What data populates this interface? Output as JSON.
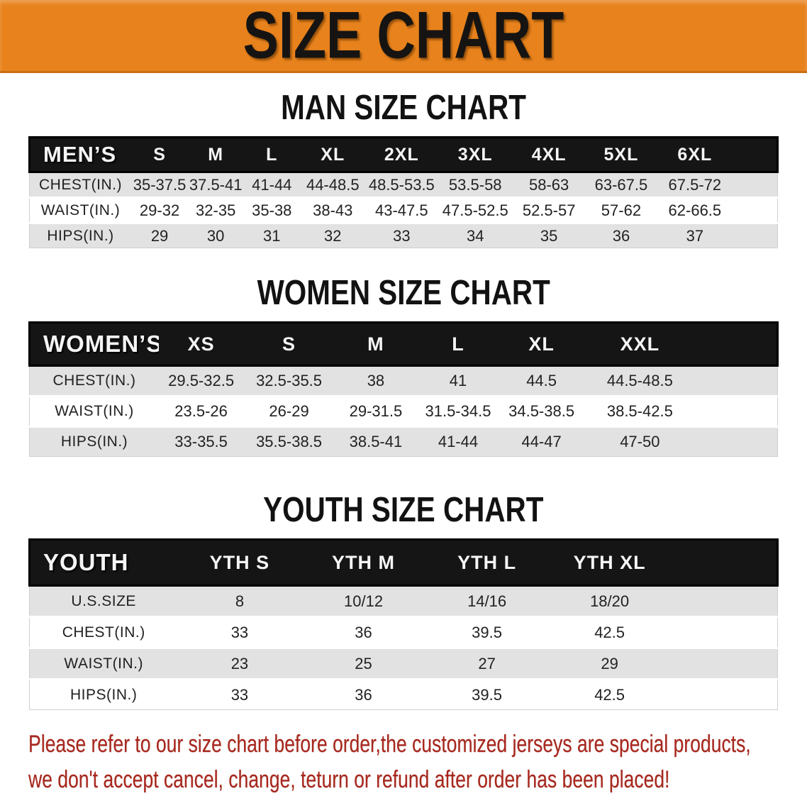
{
  "banner": {
    "title": "SIZE CHART"
  },
  "sections": [
    {
      "title": "MAN SIZE CHART",
      "group_label": "MEN’S",
      "columns": [
        "S",
        "M",
        "L",
        "XL",
        "2XL",
        "3XL",
        "4XL",
        "5XL",
        "6XL"
      ],
      "rows": [
        {
          "label": "CHEST(IN.)",
          "values": [
            "35-37.5",
            "37.5-41",
            "41-44",
            "44-48.5",
            "48.5-53.5",
            "53.5-58",
            "58-63",
            "63-67.5",
            "67.5-72"
          ]
        },
        {
          "label": "WAIST(IN.)",
          "values": [
            "29-32",
            "32-35",
            "35-38",
            "38-43",
            "43-47.5",
            "47.5-52.5",
            "52.5-57",
            "57-62",
            "62-66.5"
          ]
        },
        {
          "label": "HIPS(IN.)",
          "values": [
            "29",
            "30",
            "31",
            "32",
            "33",
            "34",
            "35",
            "36",
            "37"
          ]
        }
      ]
    },
    {
      "title": "WOMEN SIZE CHART",
      "group_label": "WOMEN’S",
      "columns": [
        "XS",
        "S",
        "M",
        "L",
        "XL",
        "XXL"
      ],
      "rows": [
        {
          "label": "CHEST(IN.)",
          "values": [
            "29.5-32.5",
            "32.5-35.5",
            "38",
            "41",
            "44.5",
            "44.5-48.5"
          ]
        },
        {
          "label": "WAIST(IN.)",
          "values": [
            "23.5-26",
            "26-29",
            "29-31.5",
            "31.5-34.5",
            "34.5-38.5",
            "38.5-42.5"
          ]
        },
        {
          "label": "HIPS(IN.)",
          "values": [
            "33-35.5",
            "35.5-38.5",
            "38.5-41",
            "41-44",
            "44-47",
            "47-50"
          ]
        }
      ]
    },
    {
      "title": "YOUTH SIZE CHART",
      "group_label": "YOUTH",
      "columns": [
        "YTH S",
        "YTH M",
        "YTH L",
        "YTH XL"
      ],
      "rows": [
        {
          "label": "U.S.SIZE",
          "values": [
            "8",
            "10/12",
            "14/16",
            "18/20"
          ]
        },
        {
          "label": "CHEST(IN.)",
          "values": [
            "33",
            "36",
            "39.5",
            "42.5"
          ]
        },
        {
          "label": "WAIST(IN.)",
          "values": [
            "23",
            "25",
            "27",
            "29"
          ]
        },
        {
          "label": "HIPS(IN.)",
          "values": [
            "33",
            "36",
            "39.5",
            "42.5"
          ]
        }
      ]
    }
  ],
  "footer": {
    "line1": "Please refer to our size chart before order,the customized jerseys are special products,",
    "line2": "we don't accept cancel, change, teturn or refund after order has been placed!"
  },
  "colors": {
    "banner_bg": "#E8821C",
    "banner_edge": "#C96E12",
    "header_bar_bg": "#151515",
    "row_stripe": "#E2E2E2",
    "footer_text": "#A8281E"
  }
}
